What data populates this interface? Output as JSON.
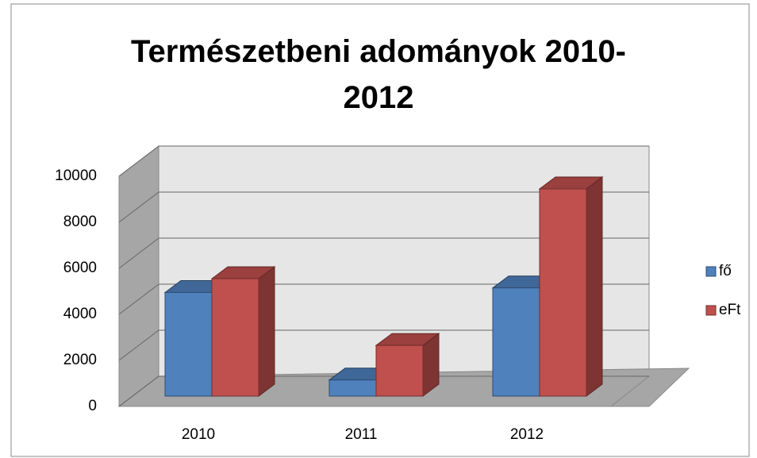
{
  "chart_data": {
    "type": "bar3d",
    "title": "Természetbeni adományok 2010-2012",
    "categories": [
      "2010",
      "2011",
      "2012"
    ],
    "series": [
      {
        "name": "fő",
        "color": "#4f81bd",
        "values": [
          4500,
          700,
          4700
        ]
      },
      {
        "name": "eFt",
        "color": "#c0504d",
        "values": [
          5100,
          2200,
          9000
        ]
      }
    ],
    "ylim": [
      0,
      10000
    ],
    "yticks": [
      0,
      2000,
      4000,
      6000,
      8000,
      10000
    ],
    "grid": true,
    "legend": "right"
  }
}
